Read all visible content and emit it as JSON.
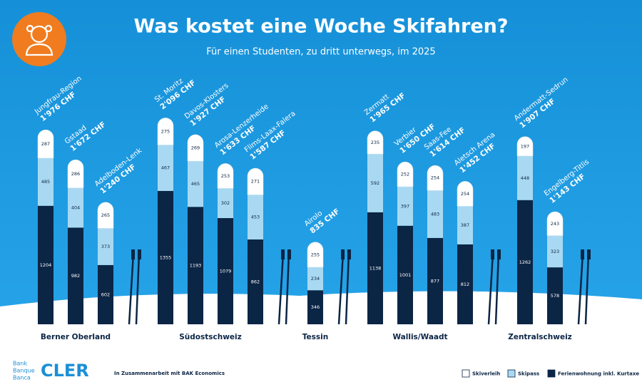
{
  "chart_data": {
    "type": "bar",
    "stacked": true,
    "title": "Was kostet eine Woche Skifahren?",
    "subtitle": "Für einen Studenten, zu dritt unterwegs, im 2025",
    "groups": [
      {
        "name": "Berner Oberland",
        "categories": [
          "Jungfrau-Region",
          "Gstaad",
          "Adelboden-Lenk"
        ]
      },
      {
        "name": "Südostschweiz",
        "categories": [
          "St. Moritz",
          "Davos-Klosters",
          "Arosa-Lenzerheide",
          "Flims-Laax-Falera"
        ]
      },
      {
        "name": "Tessin",
        "categories": [
          "Airolo"
        ]
      },
      {
        "name": "Wallis/Waadt",
        "categories": [
          "Zermatt",
          "Verbier",
          "Saas-Fee",
          "Aletsch Arena"
        ]
      },
      {
        "name": "Zentralschweiz",
        "categories": [
          "Andermatt-Sedrun",
          "Engelberg-Titlis"
        ]
      }
    ],
    "series": [
      {
        "name": "Ferienwohnung inkl. Kurtaxe",
        "color": "#0b2545",
        "values": [
          1204,
          982,
          602,
          1355,
          1193,
          1079,
          862,
          346,
          1138,
          1001,
          877,
          812,
          1262,
          578
        ]
      },
      {
        "name": "Skipass",
        "color": "#a9d9f2",
        "values": [
          485,
          404,
          373,
          467,
          465,
          302,
          453,
          234,
          592,
          397,
          483,
          387,
          448,
          323
        ]
      },
      {
        "name": "Skiverleih",
        "color": "#ffffff",
        "values": [
          287,
          286,
          265,
          275,
          269,
          253,
          271,
          255,
          235,
          252,
          254,
          254,
          197,
          243
        ]
      }
    ],
    "totals": [
      {
        "value": 1976,
        "label": "1'976 CHF"
      },
      {
        "value": 1672,
        "label": "1'672 CHF"
      },
      {
        "value": 1240,
        "label": "1'240 CHF"
      },
      {
        "value": 2096,
        "label": "2'096 CHF"
      },
      {
        "value": 1927,
        "label": "1'927 CHF"
      },
      {
        "value": 1633,
        "label": "1'633 CHF"
      },
      {
        "value": 1587,
        "label": "1'587 CHF"
      },
      {
        "value": 835,
        "label": "835 CHF"
      },
      {
        "value": 1965,
        "label": "1'965 CHF"
      },
      {
        "value": 1650,
        "label": "1'650 CHF"
      },
      {
        "value": 1614,
        "label": "1'614 CHF"
      },
      {
        "value": 1452,
        "label": "1'452 CHF"
      },
      {
        "value": 1907,
        "label": "1'907 CHF"
      },
      {
        "value": 1143,
        "label": "1'143 CHF"
      }
    ],
    "ylim": [
      0,
      2100
    ]
  },
  "branding": {
    "bank_lines": [
      "Bank",
      "Banque",
      "Banca"
    ],
    "logo": "CLER",
    "note": "In Zusammenarbeit mit BAK Economics"
  }
}
